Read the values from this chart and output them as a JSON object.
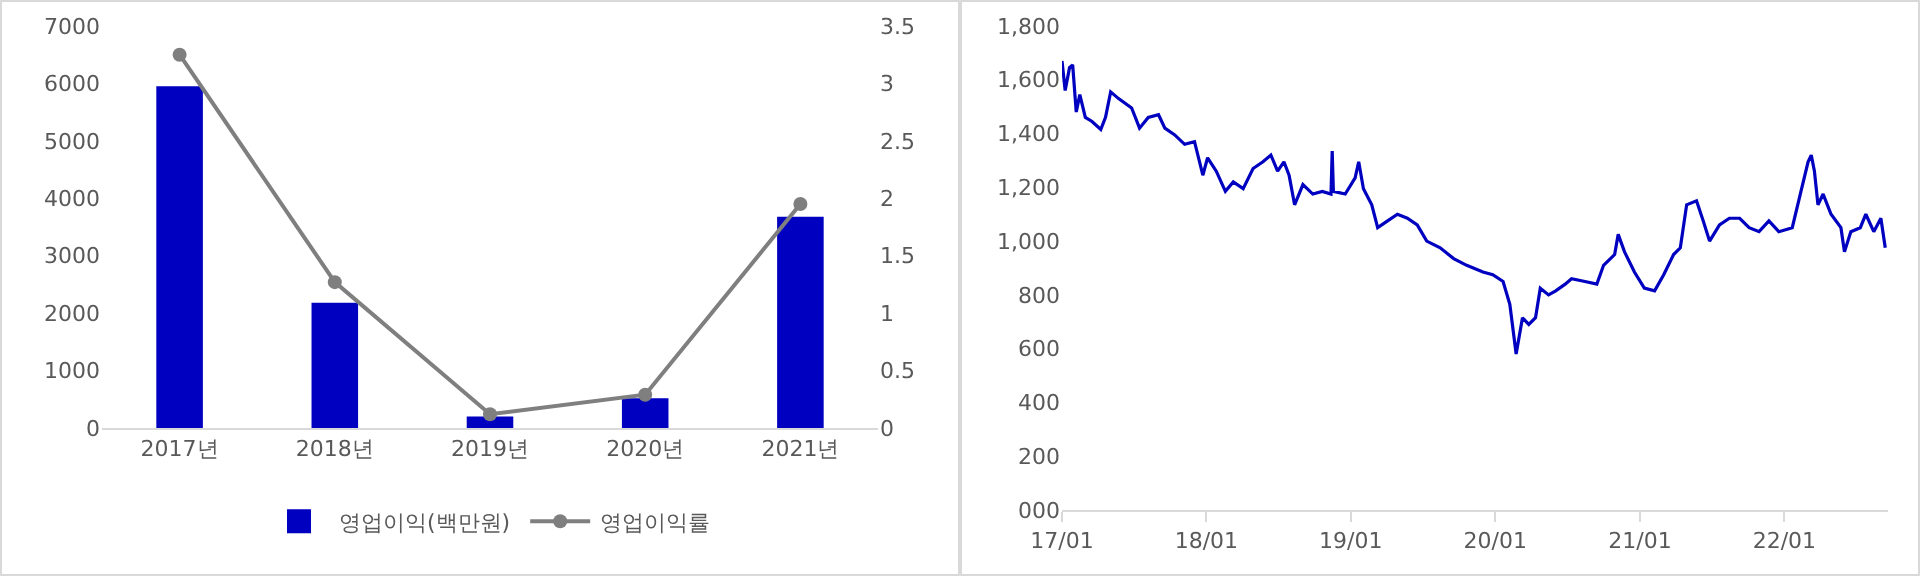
{
  "chart_data": [
    {
      "type": "bar",
      "categories": [
        "2017년",
        "2018년",
        "2019년",
        "2020년",
        "2021년"
      ],
      "series": [
        {
          "name": "영업이익(백만원)",
          "color": "#0000c0",
          "values": [
            5950,
            2180,
            200,
            520,
            3680
          ]
        },
        {
          "name": "영업이익률",
          "type": "line",
          "axis": "y2",
          "color": "#7f7f7f",
          "values": [
            3.25,
            1.27,
            0.12,
            0.29,
            1.95
          ]
        }
      ],
      "ylim": [
        0,
        7000
      ],
      "yticks": [
        0,
        1000,
        2000,
        3000,
        4000,
        5000,
        6000,
        7000
      ],
      "y2lim": [
        0,
        3.5
      ],
      "y2ticks": [
        0,
        0.5,
        1,
        1.5,
        2,
        2.5,
        3,
        3.5
      ],
      "marker": "circle",
      "legend": "bottom",
      "grid": false
    },
    {
      "type": "line",
      "x": [
        "2017-01-01",
        "2017-01-09",
        "2017-01-20",
        "2017-01-28",
        "2017-02-06",
        "2017-02-15",
        "2017-03-01",
        "2017-03-18",
        "2017-04-09",
        "2017-04-21",
        "2017-05-04",
        "2017-05-24",
        "2017-06-26",
        "2017-07-16",
        "2017-08-07",
        "2017-09-02",
        "2017-09-18",
        "2017-10-13",
        "2017-11-07",
        "2017-12-02",
        "2017-12-23",
        "2018-01-04",
        "2018-01-26",
        "2018-02-18",
        "2018-03-10",
        "2018-04-04",
        "2018-04-29",
        "2018-05-24",
        "2018-06-13",
        "2018-06-30",
        "2018-07-16",
        "2018-07-29",
        "2018-08-12",
        "2018-09-02",
        "2018-09-27",
        "2018-10-21",
        "2018-11-12",
        "2018-11-15",
        "2018-11-18",
        "2018-12-18",
        "2019-01-12",
        "2019-01-21",
        "2019-02-02",
        "2019-02-23",
        "2019-03-10",
        "2019-04-04",
        "2019-04-29",
        "2019-05-24",
        "2019-06-18",
        "2019-07-12",
        "2019-08-15",
        "2019-09-18",
        "2019-10-21",
        "2019-12-01",
        "2019-12-26",
        "2020-01-21",
        "2020-02-07",
        "2020-02-23",
        "2020-03-10",
        "2020-03-26",
        "2020-04-12",
        "2020-04-24",
        "2020-05-15",
        "2020-06-02",
        "2020-06-26",
        "2020-07-12",
        "2020-08-15",
        "2020-09-14",
        "2020-10-01",
        "2020-10-29",
        "2020-11-07",
        "2020-11-23",
        "2020-12-18",
        "2021-01-12",
        "2021-02-07",
        "2021-03-02",
        "2021-03-27",
        "2021-04-13",
        "2021-04-29",
        "2021-05-24",
        "2021-06-10",
        "2021-06-26",
        "2021-07-21",
        "2021-08-15",
        "2021-09-10",
        "2021-10-04",
        "2021-10-29",
        "2021-11-23",
        "2021-12-18",
        "2022-01-21",
        "2022-02-12",
        "2022-03-02",
        "2022-03-10",
        "2022-03-18",
        "2022-03-27",
        "2022-04-09",
        "2022-04-29",
        "2022-05-24",
        "2022-06-02",
        "2022-06-18",
        "2022-07-12",
        "2022-07-26",
        "2022-08-15",
        "2022-09-02",
        "2022-09-13"
      ],
      "series": [
        {
          "color": "#0000c0",
          "values": [
            1670,
            1560,
            1645,
            1655,
            1480,
            1545,
            1460,
            1445,
            1415,
            1460,
            1555,
            1530,
            1495,
            1420,
            1460,
            1470,
            1420,
            1395,
            1360,
            1370,
            1245,
            1310,
            1260,
            1185,
            1220,
            1195,
            1270,
            1295,
            1320,
            1260,
            1295,
            1245,
            1135,
            1210,
            1175,
            1185,
            1175,
            1335,
            1185,
            1175,
            1235,
            1295,
            1195,
            1135,
            1050,
            1075,
            1100,
            1085,
            1060,
            1000,
            975,
            935,
            910,
            885,
            875,
            850,
            765,
            580,
            715,
            690,
            715,
            825,
            800,
            815,
            840,
            860,
            850,
            840,
            910,
            950,
            1025,
            960,
            885,
            825,
            815,
            875,
            950,
            975,
            1135,
            1150,
            1075,
            1000,
            1060,
            1085,
            1085,
            1050,
            1035,
            1075,
            1035,
            1050,
            1185,
            1295,
            1320,
            1260,
            1135,
            1175,
            1100,
            1050,
            960,
            1035,
            1050,
            1100,
            1035,
            1085,
            975
          ]
        }
      ],
      "xlim": [
        "2017-01-01",
        "2022-09-20"
      ],
      "xticks": [
        {
          "value": "2017-01",
          "label": "17/01"
        },
        {
          "value": "2018-01",
          "label": "18/01"
        },
        {
          "value": "2019-01",
          "label": "19/01"
        },
        {
          "value": "2020-01",
          "label": "20/01"
        },
        {
          "value": "2021-01",
          "label": "21/01"
        },
        {
          "value": "2022-01",
          "label": "22/01"
        }
      ],
      "ylim": [
        0,
        1800
      ],
      "yticks": [
        {
          "value": 0,
          "label": "000"
        },
        200,
        400,
        600,
        800,
        {
          "value": 1000,
          "label": "1,000"
        },
        {
          "value": 1200,
          "label": "1,200"
        },
        {
          "value": 1400,
          "label": "1,400"
        },
        {
          "value": 1600,
          "label": "1,600"
        },
        {
          "value": 1800,
          "label": "1,800"
        }
      ],
      "marker": "none",
      "legend": false,
      "grid": false
    }
  ]
}
